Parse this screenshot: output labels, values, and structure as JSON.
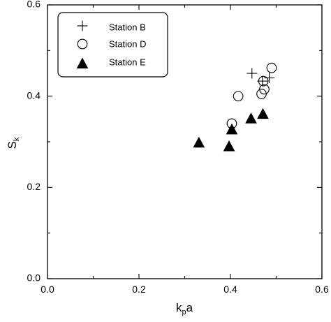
{
  "chart_data": {
    "type": "scatter",
    "title": "",
    "xlabel": "k_p a",
    "ylabel": "S_k",
    "xlim": [
      0.0,
      0.6
    ],
    "ylim": [
      0.0,
      0.6
    ],
    "xticks": [
      0.0,
      0.2,
      0.4,
      0.6
    ],
    "yticks": [
      0.0,
      0.2,
      0.4,
      0.6
    ],
    "xtick_labels": [
      "0.0",
      "0.2",
      "0.4",
      "0.6"
    ],
    "ytick_labels": [
      "0.0",
      "0.2",
      "0.4",
      "0.6"
    ],
    "grid": false,
    "legend_position": "top-left",
    "series": [
      {
        "name": "Station B",
        "marker": "plus",
        "points": [
          {
            "x": 0.447,
            "y": 0.45
          },
          {
            "x": 0.47,
            "y": 0.433
          },
          {
            "x": 0.485,
            "y": 0.44
          }
        ]
      },
      {
        "name": "Station D",
        "marker": "circle-open",
        "points": [
          {
            "x": 0.403,
            "y": 0.34
          },
          {
            "x": 0.417,
            "y": 0.4
          },
          {
            "x": 0.468,
            "y": 0.405
          },
          {
            "x": 0.472,
            "y": 0.433
          },
          {
            "x": 0.474,
            "y": 0.415
          },
          {
            "x": 0.49,
            "y": 0.462
          }
        ]
      },
      {
        "name": "Station E",
        "marker": "triangle-filled",
        "points": [
          {
            "x": 0.331,
            "y": 0.298
          },
          {
            "x": 0.397,
            "y": 0.29
          },
          {
            "x": 0.403,
            "y": 0.327
          },
          {
            "x": 0.445,
            "y": 0.351
          },
          {
            "x": 0.471,
            "y": 0.361
          }
        ]
      }
    ]
  },
  "axes": {
    "x_title_main": "k",
    "x_title_sub": "p",
    "x_title_tail": "a",
    "y_title_main": "S",
    "y_title_sub": "k"
  },
  "legend": {
    "items": [
      {
        "label": "Station B",
        "marker": "plus"
      },
      {
        "label": "Station D",
        "marker": "circle-open"
      },
      {
        "label": "Station E",
        "marker": "triangle-filled"
      }
    ]
  }
}
